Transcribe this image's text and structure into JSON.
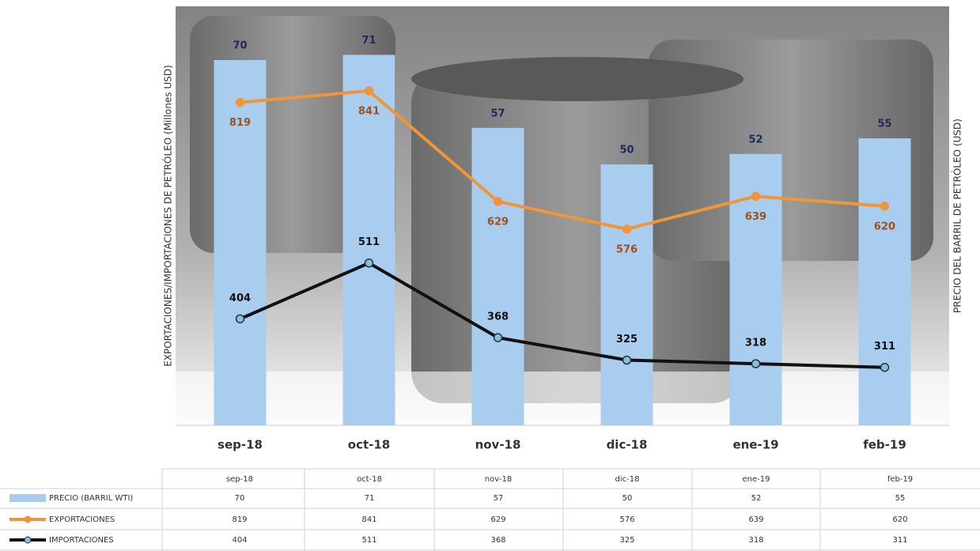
{
  "chart_data": {
    "type": "bar",
    "y_label": "EXPORTACIONES/IMPORTACIONES DE PETRÓLEO (Millones USD)",
    "y2_label": "PRECIO DEL BARRIL DE PETRÓLEO (USD)",
    "categories": [
      "sep-18",
      "oct-18",
      "nov-18",
      "dic-18",
      "ene-19",
      "feb-19"
    ],
    "ylim": [
      200,
      1000
    ],
    "y2lim": [
      0,
      80
    ],
    "series": [
      {
        "name": "PRECIO (BARRIL WTI)",
        "type": "bar",
        "axis": "y2",
        "color": "#a9cdee",
        "values": [
          70,
          71,
          57,
          50,
          52,
          55
        ]
      },
      {
        "name": "EXPORTACIONES",
        "type": "line",
        "color": "#f0953a",
        "values": [
          819,
          841,
          629,
          576,
          639,
          620
        ]
      },
      {
        "name": "IMPORTACIONES",
        "type": "line",
        "color": "#111111",
        "values": [
          404,
          511,
          368,
          325,
          318,
          311
        ]
      }
    ]
  }
}
